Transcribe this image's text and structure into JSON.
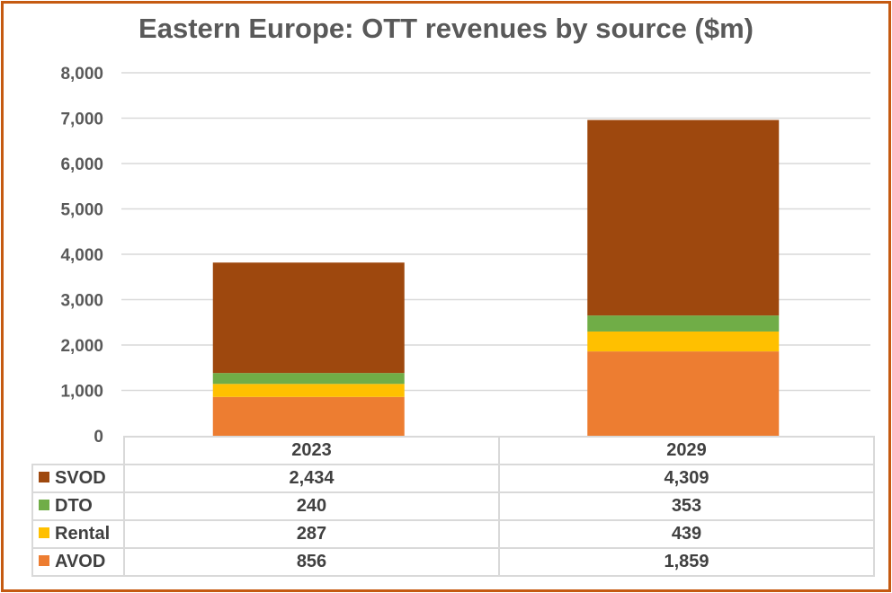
{
  "chart_data": {
    "type": "bar",
    "stacked": true,
    "title": "Eastern Europe: OTT revenues by source ($m)",
    "categories": [
      "2023",
      "2029"
    ],
    "series": [
      {
        "name": "AVOD",
        "color": "#ed7d31",
        "values": [
          856,
          1859
        ],
        "labels": [
          "856",
          "1,859"
        ]
      },
      {
        "name": "Rental",
        "color": "#ffc000",
        "values": [
          287,
          439
        ],
        "labels": [
          "287",
          "439"
        ]
      },
      {
        "name": "DTO",
        "color": "#70ad47",
        "values": [
          240,
          353
        ],
        "labels": [
          "240",
          "353"
        ]
      },
      {
        "name": "SVOD",
        "color": "#9e480e",
        "values": [
          2434,
          4309
        ],
        "labels": [
          "2,434",
          "4,309"
        ]
      }
    ],
    "ylim": [
      0,
      8000
    ],
    "yticks": [
      "0",
      "1,000",
      "2,000",
      "3,000",
      "4,000",
      "5,000",
      "6,000",
      "7,000",
      "8,000"
    ],
    "grid": true,
    "legend": "data-table"
  }
}
